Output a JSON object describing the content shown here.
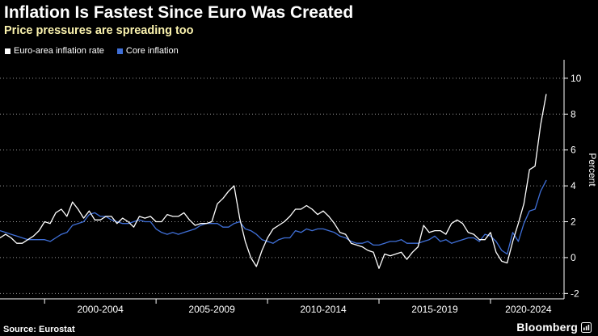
{
  "header": {
    "title": "Inflation Is Fastest Since Euro Was Created",
    "subtitle": "Price pressures are spreading too"
  },
  "legend": [
    {
      "label": "Euro-area inflation rate",
      "color": "#ffffff"
    },
    {
      "label": "Core inflation",
      "color": "#3f6fd7"
    }
  ],
  "footer": {
    "source": "Source: Eurostat",
    "brand": "Bloomberg"
  },
  "colors": {
    "background": "#000000",
    "title": "#ffffff",
    "subtitle": "#fbf3ae",
    "headline_line": "#ffffff",
    "core_line": "#3f6fd7",
    "gridline": "#9a9a9a",
    "axis": "#ffffff"
  },
  "chart_data": {
    "type": "line",
    "title": "Inflation Is Fastest Since Euro Was Created",
    "subtitle": "Price pressures are spreading too",
    "ylabel": "Percent",
    "ylim": [
      -2.3,
      10.85
    ],
    "yticks": [
      -2,
      0,
      2,
      4,
      6,
      8,
      10
    ],
    "grid": "dotted-horizontal",
    "legend_position": "top-left",
    "x_start": 1998.0,
    "x_step": 0.25,
    "xlim": [
      1998.0,
      2023.3
    ],
    "x_ticks": [
      2000,
      2005,
      2010,
      2015,
      2020
    ],
    "x_labels": [
      {
        "text": "2000-2004",
        "x": 2002.5
      },
      {
        "text": "2005-2009",
        "x": 2007.5
      },
      {
        "text": "2010-2014",
        "x": 2012.5
      },
      {
        "text": "2015-2019",
        "x": 2017.5
      },
      {
        "text": "2020-2024",
        "x": 2021.7
      }
    ],
    "series": [
      {
        "name": "Euro-area inflation rate",
        "color": "#ffffff",
        "values": [
          1.1,
          1.3,
          1.1,
          0.8,
          0.8,
          1.0,
          1.2,
          1.5,
          2.0,
          1.9,
          2.5,
          2.7,
          2.3,
          3.1,
          2.7,
          2.2,
          2.6,
          2.1,
          2.1,
          2.3,
          2.3,
          1.9,
          2.2,
          2.0,
          1.7,
          2.3,
          2.2,
          2.3,
          2.0,
          2.0,
          2.4,
          2.3,
          2.3,
          2.5,
          2.1,
          1.8,
          1.9,
          1.9,
          2.0,
          3.0,
          3.3,
          3.7,
          4.0,
          2.2,
          0.9,
          0.0,
          -0.5,
          0.4,
          1.1,
          1.6,
          1.8,
          2.0,
          2.3,
          2.7,
          2.7,
          2.9,
          2.7,
          2.4,
          2.6,
          2.3,
          1.9,
          1.4,
          1.3,
          0.8,
          0.7,
          0.6,
          0.4,
          0.3,
          -0.6,
          0.2,
          0.1,
          0.2,
          0.3,
          -0.1,
          0.3,
          0.6,
          1.8,
          1.4,
          1.5,
          1.5,
          1.3,
          1.9,
          2.1,
          1.9,
          1.4,
          1.3,
          1.0,
          1.0,
          1.4,
          0.3,
          -0.2,
          -0.3,
          0.9,
          1.9,
          3.0,
          4.9,
          5.1,
          7.4,
          9.1
        ]
      },
      {
        "name": "Core inflation",
        "color": "#3f6fd7",
        "values": [
          1.5,
          1.4,
          1.3,
          1.2,
          1.1,
          1.0,
          1.0,
          1.0,
          1.0,
          0.9,
          1.1,
          1.3,
          1.4,
          1.8,
          1.9,
          2.0,
          2.4,
          2.5,
          2.3,
          2.3,
          2.1,
          2.0,
          1.9,
          1.9,
          2.0,
          2.1,
          2.0,
          2.0,
          1.6,
          1.4,
          1.3,
          1.4,
          1.3,
          1.4,
          1.5,
          1.6,
          1.8,
          1.9,
          1.9,
          1.9,
          1.7,
          1.7,
          1.9,
          2.0,
          1.6,
          1.5,
          1.3,
          1.0,
          0.9,
          0.8,
          1.0,
          1.1,
          1.1,
          1.5,
          1.4,
          1.6,
          1.5,
          1.6,
          1.6,
          1.5,
          1.4,
          1.2,
          1.1,
          0.9,
          0.8,
          0.8,
          0.9,
          0.7,
          0.7,
          0.8,
          0.9,
          0.9,
          1.0,
          0.8,
          0.8,
          0.8,
          0.9,
          1.0,
          1.2,
          0.9,
          1.0,
          0.8,
          0.9,
          1.0,
          1.1,
          1.1,
          0.9,
          1.3,
          1.2,
          0.9,
          0.4,
          0.2,
          1.4,
          0.9,
          1.9,
          2.6,
          2.7,
          3.7,
          4.3
        ]
      }
    ]
  }
}
